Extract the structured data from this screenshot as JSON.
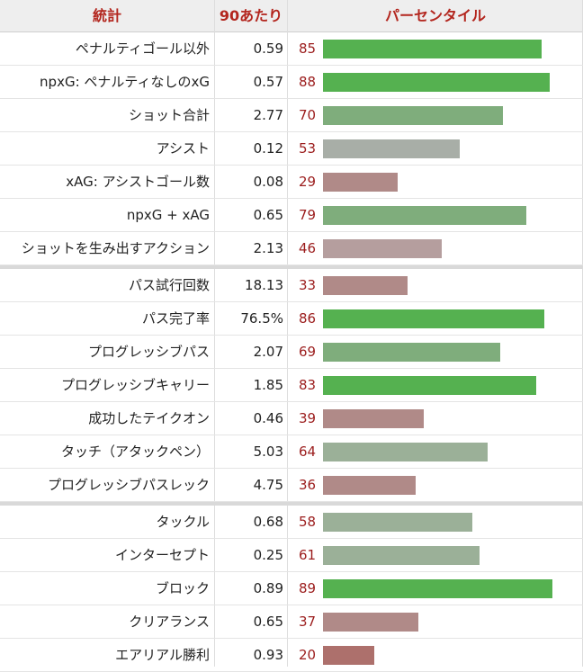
{
  "header": {
    "stat": "統計",
    "per90": "90あたり",
    "percentile": "パーセンタイル"
  },
  "colors": {
    "high": "#55b150",
    "above": "#7fad7c",
    "mid_high": "#9bb098",
    "mid": "#a8aea7",
    "mid_low": "#b59e9e",
    "low": "#b08a88",
    "very_low": "#ad706c"
  },
  "chart_data": {
    "type": "bar",
    "groups": [
      {
        "rows": [
          {
            "label": "ペナルティゴール以外",
            "per90": "0.59",
            "percentile": 85
          },
          {
            "label": "npxG: ペナルティなしのxG",
            "per90": "0.57",
            "percentile": 88
          },
          {
            "label": "ショット合計",
            "per90": "2.77",
            "percentile": 70
          },
          {
            "label": "アシスト",
            "per90": "0.12",
            "percentile": 53
          },
          {
            "label": "xAG: アシストゴール数",
            "per90": "0.08",
            "percentile": 29
          },
          {
            "label": "npxG + xAG",
            "per90": "0.65",
            "percentile": 79
          },
          {
            "label": "ショットを生み出すアクション",
            "per90": "2.13",
            "percentile": 46
          }
        ]
      },
      {
        "rows": [
          {
            "label": "パス試行回数",
            "per90": "18.13",
            "percentile": 33
          },
          {
            "label": "パス完了率",
            "per90": "76.5%",
            "percentile": 86
          },
          {
            "label": "プログレッシブパス",
            "per90": "2.07",
            "percentile": 69
          },
          {
            "label": "プログレッシブキャリー",
            "per90": "1.85",
            "percentile": 83
          },
          {
            "label": "成功したテイクオン",
            "per90": "0.46",
            "percentile": 39
          },
          {
            "label": "タッチ（アタックペン）",
            "per90": "5.03",
            "percentile": 64
          },
          {
            "label": "プログレッシブパスレック",
            "per90": "4.75",
            "percentile": 36
          }
        ]
      },
      {
        "rows": [
          {
            "label": "タックル",
            "per90": "0.68",
            "percentile": 58
          },
          {
            "label": "インターセプト",
            "per90": "0.25",
            "percentile": 61
          },
          {
            "label": "ブロック",
            "per90": "0.89",
            "percentile": 89
          },
          {
            "label": "クリアランス",
            "per90": "0.65",
            "percentile": 37
          },
          {
            "label": "エアリアル勝利",
            "per90": "0.93",
            "percentile": 20
          }
        ]
      }
    ],
    "xlim": [
      0,
      100
    ]
  }
}
